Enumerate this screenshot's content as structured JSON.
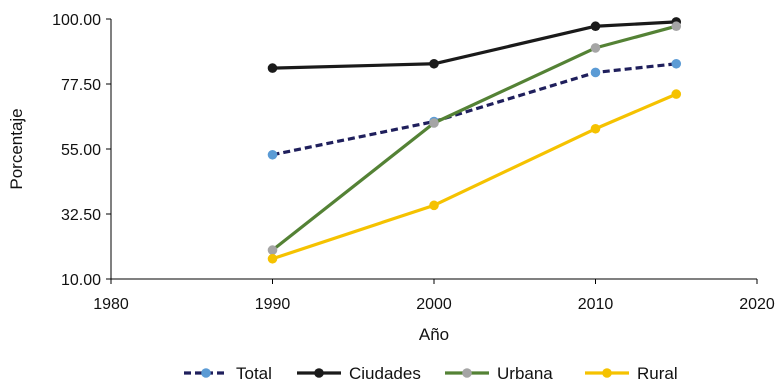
{
  "chart_data": {
    "type": "line",
    "title": "",
    "xlabel": "Año",
    "ylabel": "Porcentaje",
    "xlim": [
      1980,
      2020
    ],
    "ylim": [
      10,
      100
    ],
    "x_ticks": [
      1980,
      1990,
      2000,
      2010,
      2020
    ],
    "y_ticks": [
      "10.00",
      "32.50",
      "55.00",
      "77.50",
      "100.00"
    ],
    "grid": false,
    "legend_position": "bottom",
    "series": [
      {
        "name": "Total",
        "color": "#1f1f5c",
        "marker_color": "#5b9bd5",
        "dashed": true,
        "x": [
          1990,
          2000,
          2010,
          2015
        ],
        "y": [
          53,
          64.5,
          81.5,
          84.5
        ]
      },
      {
        "name": "Ciudades",
        "color": "#1a1a1a",
        "marker_color": "#1a1a1a",
        "dashed": false,
        "x": [
          1990,
          2000,
          2010,
          2015
        ],
        "y": [
          83,
          84.5,
          97.5,
          99
        ]
      },
      {
        "name": "Urbana",
        "color": "#548235",
        "marker_color": "#a5a5a5",
        "dashed": false,
        "x": [
          1990,
          2000,
          2010,
          2015
        ],
        "y": [
          20,
          64,
          90,
          97.5
        ]
      },
      {
        "name": "Rural",
        "color": "#f5c200",
        "marker_color": "#f5c200",
        "dashed": false,
        "x": [
          1990,
          2000,
          2010,
          2015
        ],
        "y": [
          17,
          35.5,
          62,
          74
        ]
      }
    ]
  }
}
